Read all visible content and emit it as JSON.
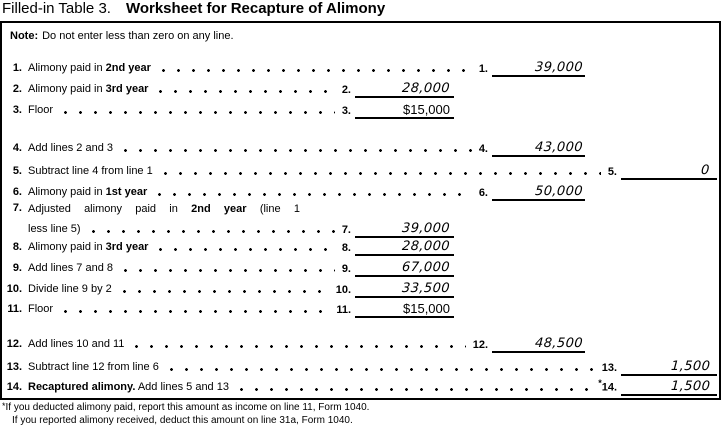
{
  "title": {
    "prefix": "Filled-in Table 3.",
    "main": "Worksheet for Recapture of Alimony"
  },
  "note": {
    "label": "Note:",
    "text": "Do not enter less than zero on any line."
  },
  "worksheet": {
    "rows": [
      {
        "num": "1.",
        "desc": [
          {
            "text": "Alimony paid in ",
            "bold": false
          },
          {
            "text": "2nd year",
            "bold": true
          }
        ],
        "ans_label": "1.",
        "value": "39,000",
        "value_style": "handwritten",
        "col": "B"
      },
      {
        "num": "2.",
        "desc": [
          {
            "text": "Alimony paid in ",
            "bold": false
          },
          {
            "text": "3rd year",
            "bold": true
          }
        ],
        "ans_label": "2.",
        "value": "28,000",
        "value_style": "handwritten",
        "col": "A"
      },
      {
        "num": "3.",
        "desc": [
          {
            "text": "Floor",
            "bold": false
          }
        ],
        "ans_label": "3.",
        "value": "$15,000",
        "value_style": "printed",
        "col": "A"
      },
      {
        "num": "4.",
        "desc": [
          {
            "text": "Add lines 2 and 3",
            "bold": false
          }
        ],
        "ans_label": "4.",
        "value": "43,000",
        "value_style": "handwritten",
        "col": "B"
      },
      {
        "num": "5.",
        "desc": [
          {
            "text": "Subtract line 4 from line 1",
            "bold": false
          }
        ],
        "ans_label": "5.",
        "value": "0",
        "value_style": "handwritten",
        "col": "C"
      },
      {
        "num": "6.",
        "desc": [
          {
            "text": "Alimony paid in ",
            "bold": false
          },
          {
            "text": "1st year",
            "bold": true
          }
        ],
        "ans_label": "6.",
        "value": "50,000",
        "value_style": "handwritten",
        "col": "B"
      },
      {
        "num": "7.",
        "desc": [
          {
            "text": "Adjusted alimony paid in ",
            "bold": false
          },
          {
            "text": "2nd year",
            "bold": true
          },
          {
            "text": " (line 1",
            "bold": false
          }
        ],
        "desc2": [
          {
            "text": "less line 5)",
            "bold": false
          }
        ],
        "ans_label": "7.",
        "value": "39,000",
        "value_style": "handwritten",
        "col": "A"
      },
      {
        "num": "8.",
        "desc": [
          {
            "text": "Alimony paid in ",
            "bold": false
          },
          {
            "text": "3rd year",
            "bold": true
          }
        ],
        "ans_label": "8.",
        "value": "28,000",
        "value_style": "handwritten",
        "col": "A"
      },
      {
        "num": "9.",
        "desc": [
          {
            "text": "Add lines 7 and 8",
            "bold": false
          }
        ],
        "ans_label": "9.",
        "value": "67,000",
        "value_style": "handwritten",
        "col": "A"
      },
      {
        "num": "10.",
        "desc": [
          {
            "text": "Divide line 9 by 2",
            "bold": false
          }
        ],
        "ans_label": "10.",
        "value": "33,500",
        "value_style": "handwritten",
        "col": "A"
      },
      {
        "num": "11.",
        "desc": [
          {
            "text": "Floor",
            "bold": false
          }
        ],
        "ans_label": "11.",
        "value": "$15,000",
        "value_style": "printed",
        "col": "A"
      },
      {
        "num": "12.",
        "desc": [
          {
            "text": "Add lines 10 and 11",
            "bold": false
          }
        ],
        "ans_label": "12.",
        "value": "48,500",
        "value_style": "handwritten",
        "col": "B"
      },
      {
        "num": "13.",
        "desc": [
          {
            "text": "Subtract line 12 from line 6",
            "bold": false
          }
        ],
        "ans_label": "13.",
        "value": "1,500",
        "value_style": "handwritten",
        "col": "C"
      },
      {
        "num": "14.",
        "desc": [
          {
            "text": "Recaptured alimony.",
            "bold": true
          },
          {
            "text": " Add lines 5 and 13",
            "bold": false
          }
        ],
        "ans_label": "*14.",
        "value": "1,500",
        "value_style": "handwritten",
        "col": "C"
      }
    ]
  },
  "footnote": {
    "marker": "*",
    "lines": [
      "If you deducted alimony paid, report this amount as income on line 11, Form 1040.",
      "If you reported alimony received, deduct this amount on line 31a, Form 1040."
    ]
  }
}
